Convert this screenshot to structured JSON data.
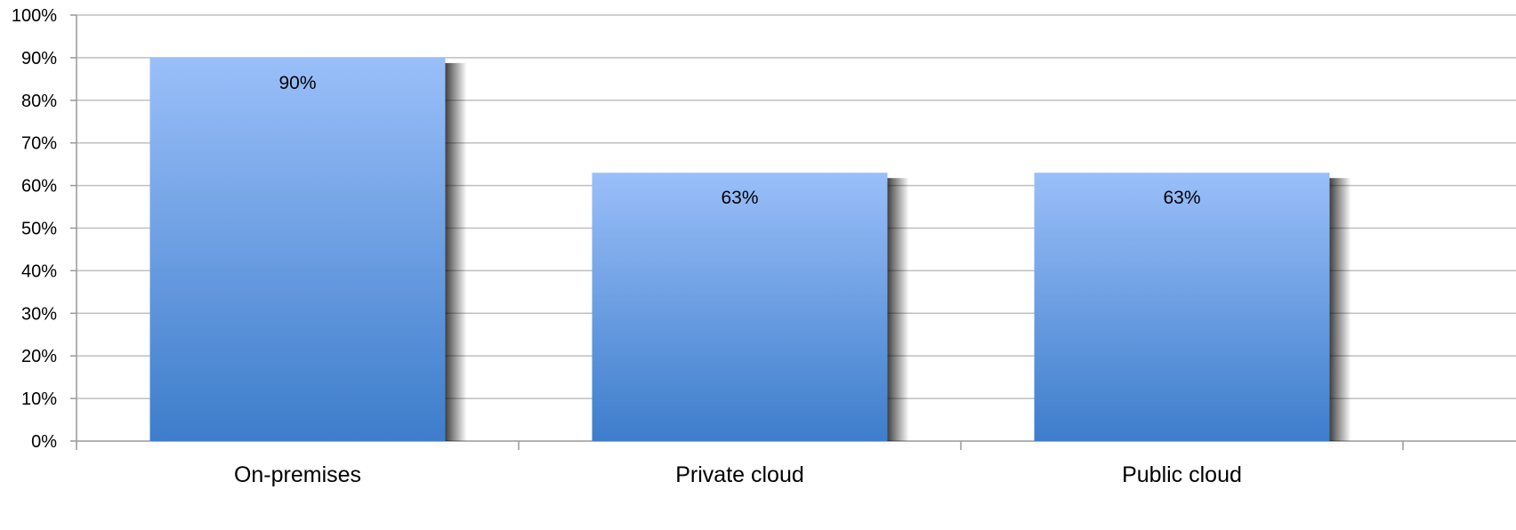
{
  "chart_data": {
    "type": "bar",
    "categories": [
      "On-premises",
      "Private cloud",
      "Public cloud"
    ],
    "values": [
      90,
      63,
      63
    ],
    "data_labels": [
      "90%",
      "63%",
      "63%"
    ],
    "y_ticks": [
      "0%",
      "10%",
      "20%",
      "30%",
      "40%",
      "50%",
      "60%",
      "70%",
      "80%",
      "90%",
      "100%"
    ],
    "ylim": [
      0,
      100
    ],
    "y_unit": "%",
    "grid": true,
    "legend": "none",
    "colors": {
      "bar_top": "#9ABFF9",
      "bar_bottom": "#3D7DCB",
      "grid": "#BFBFBF",
      "axis": "#999999"
    }
  }
}
